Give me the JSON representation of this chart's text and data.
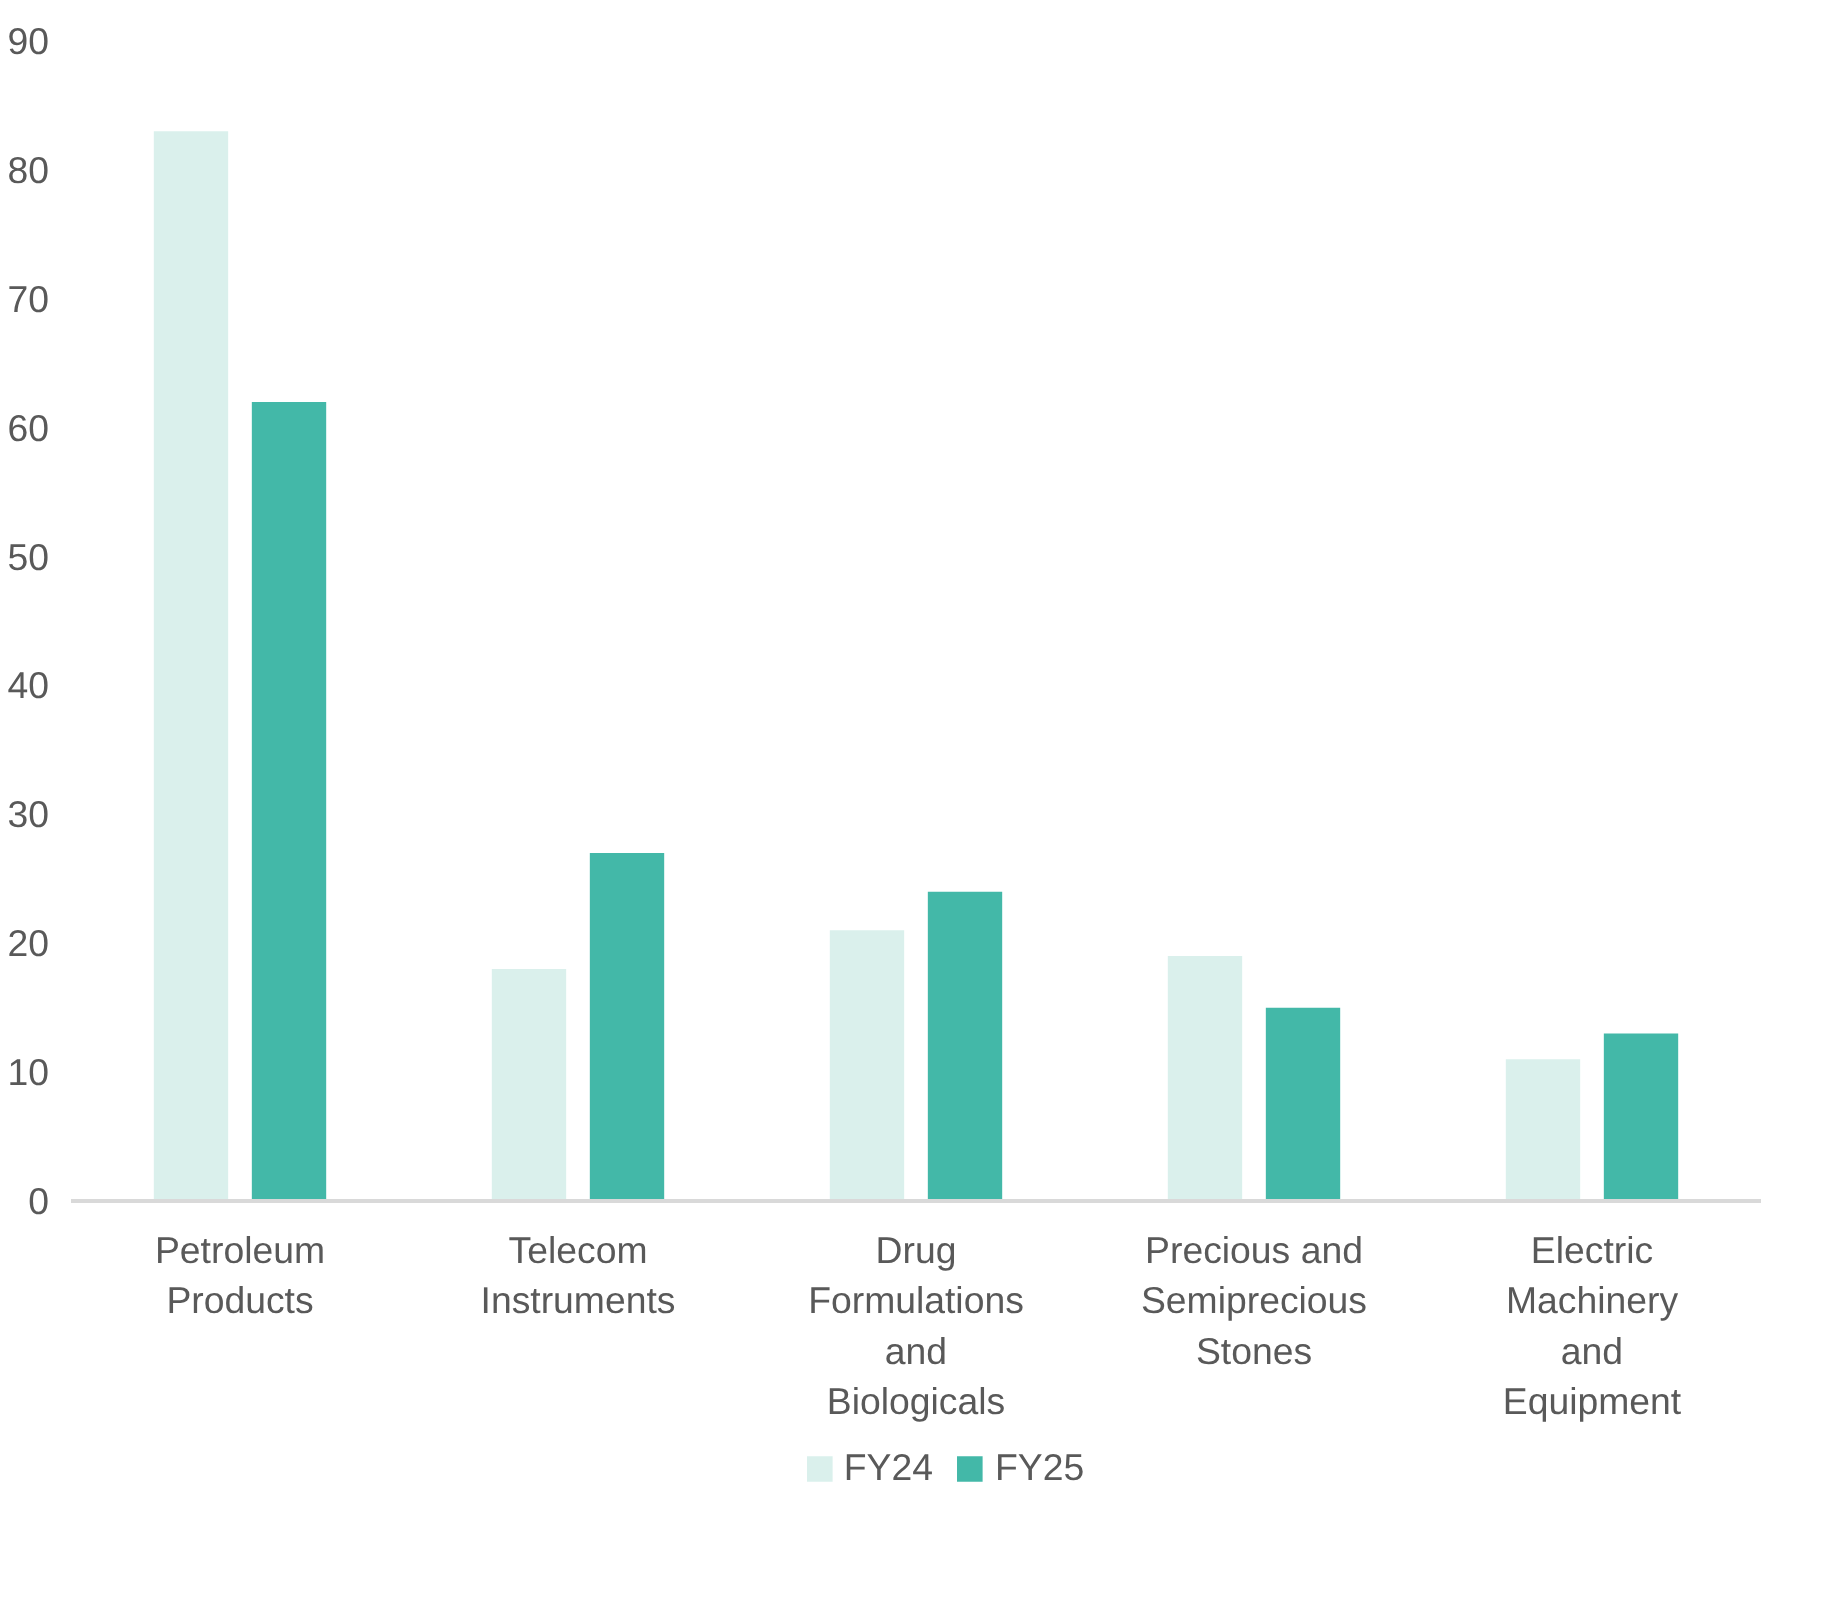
{
  "chart_data": {
    "type": "bar",
    "categories": [
      "Petroleum Products",
      "Telecom Instruments",
      "Drug Formulations and Biologicals",
      "Precious and Semiprecious Stones",
      "Electric Machinery and Equipment"
    ],
    "series": [
      {
        "name": "FY24",
        "color": "#daf0ec",
        "values": [
          83,
          18,
          21,
          19,
          11
        ]
      },
      {
        "name": "FY25",
        "color": "#43b8a8",
        "values": [
          62,
          27,
          24,
          15,
          13
        ]
      }
    ],
    "ylim": [
      0,
      90
    ],
    "yticks": [
      0,
      10,
      20,
      30,
      40,
      50,
      60,
      70,
      80,
      90
    ],
    "grid": false,
    "legend": "bottom"
  }
}
